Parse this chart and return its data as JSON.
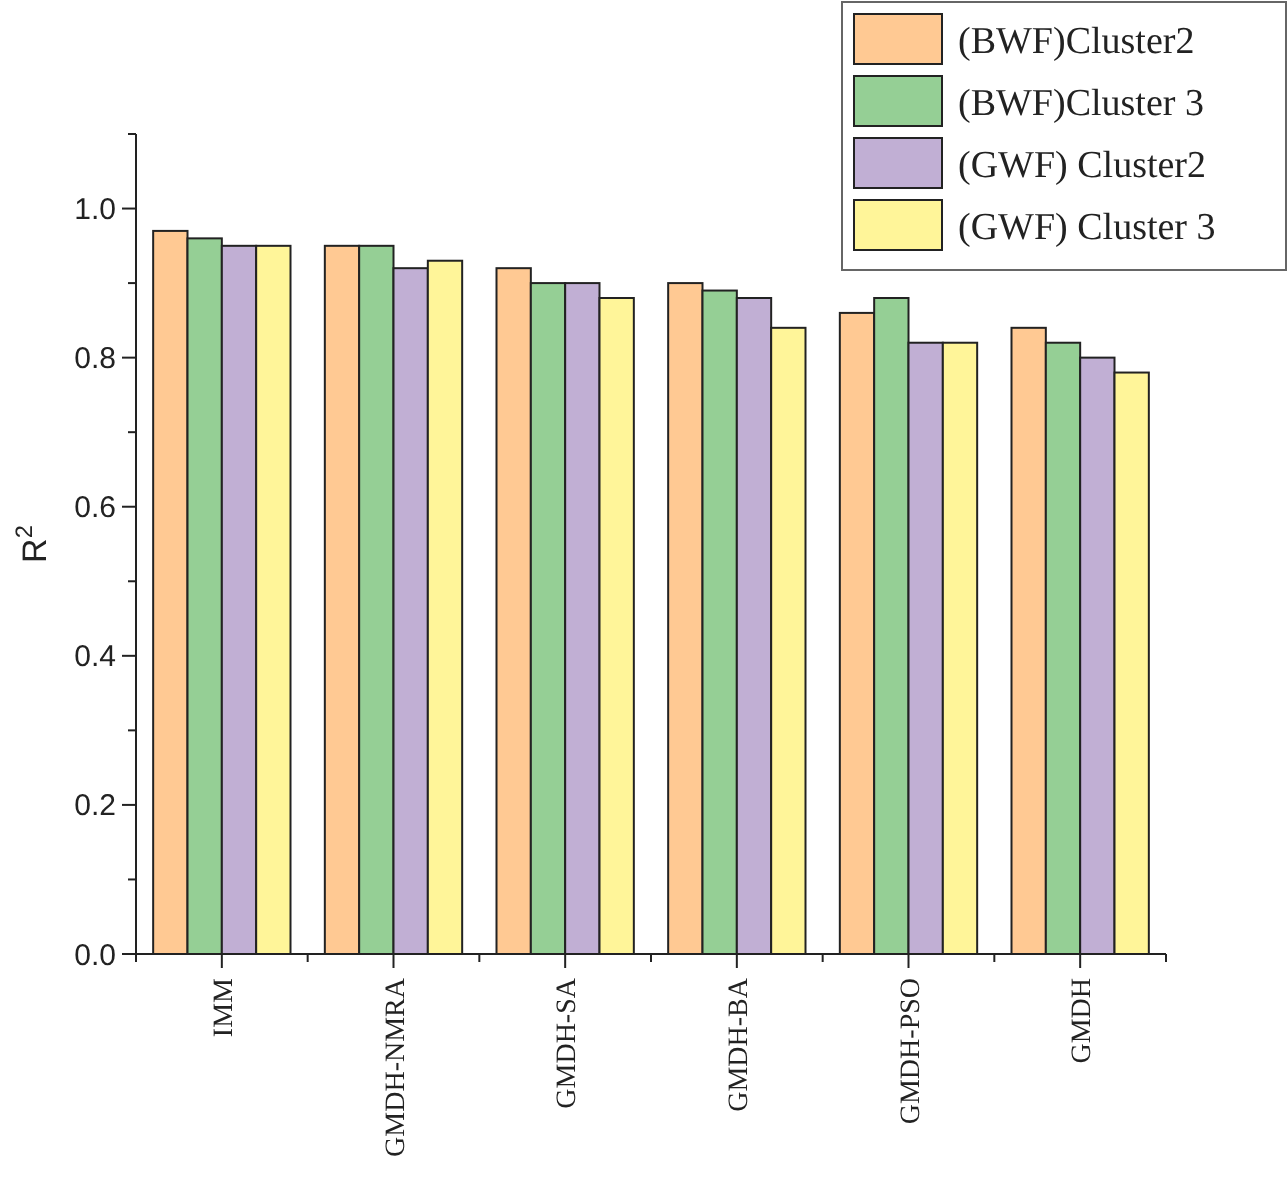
{
  "chart_data": {
    "type": "bar",
    "categories": [
      "IMM",
      "GMDH-NMRA",
      "GMDH-SA",
      "GMDH-BA",
      "GMDH-PSO",
      "GMDH"
    ],
    "series": [
      {
        "name": "(BWF)Cluster2",
        "color": "#ffc993",
        "values": [
          0.97,
          0.95,
          0.92,
          0.9,
          0.86,
          0.84
        ]
      },
      {
        "name": "(BWF)Cluster 3",
        "color": "#95cf95",
        "values": [
          0.96,
          0.95,
          0.9,
          0.89,
          0.88,
          0.82
        ]
      },
      {
        "name": "(GWF) Cluster2",
        "color": "#c1afd4",
        "values": [
          0.95,
          0.92,
          0.9,
          0.88,
          0.82,
          0.8
        ]
      },
      {
        "name": "(GWF) Cluster 3",
        "color": "#fff599",
        "values": [
          0.95,
          0.93,
          0.88,
          0.84,
          0.82,
          0.78
        ]
      }
    ],
    "ylabel": "R$^{2}$",
    "ylim": [
      0,
      1.1
    ],
    "yticks": [
      {
        "value": 0,
        "label": "0.0"
      },
      {
        "value": 0.2,
        "label": "0.2"
      },
      {
        "value": 0.4,
        "label": "0.4"
      },
      {
        "value": 0.6,
        "label": "0.6"
      },
      {
        "value": 0.8,
        "label": "0.8"
      },
      {
        "value": 1,
        "label": "1.0"
      }
    ],
    "grid": false,
    "legend": "top right"
  }
}
